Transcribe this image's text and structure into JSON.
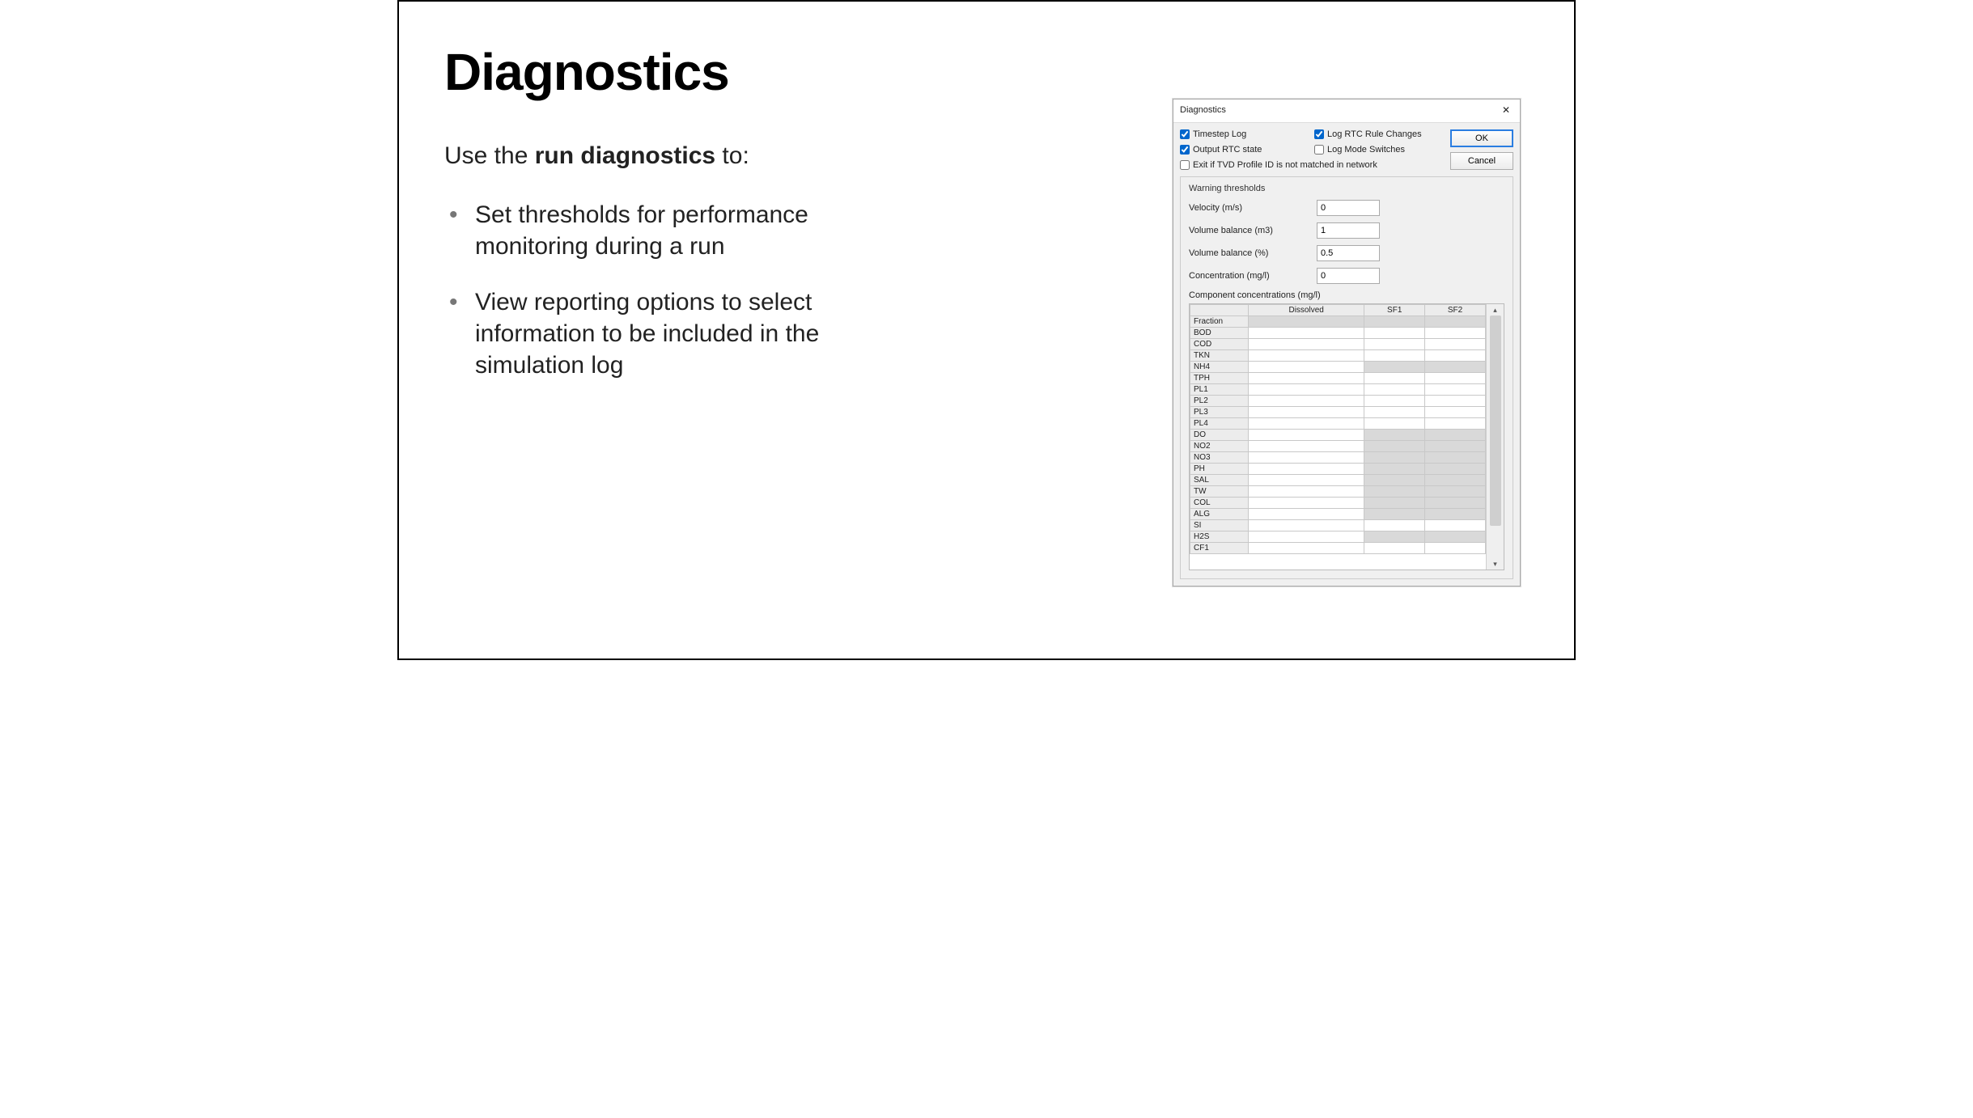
{
  "slide": {
    "title": "Diagnostics",
    "intro_prefix": "Use the ",
    "intro_bold": "run diagnostics",
    "intro_suffix": " to:",
    "bullets": [
      "Set thresholds for performance monitoring during a run",
      "View reporting options to select information to be included in the simulation log"
    ]
  },
  "dialog": {
    "title": "Diagnostics",
    "buttons": {
      "ok": "OK",
      "cancel": "Cancel"
    },
    "checkboxes": {
      "timestep_log": {
        "label": "Timestep Log",
        "checked": true
      },
      "log_rtc_rule_changes": {
        "label": "Log RTC Rule Changes",
        "checked": true
      },
      "output_rtc_state": {
        "label": "Output RTC state",
        "checked": true
      },
      "log_mode_switches": {
        "label": "Log Mode Switches",
        "checked": false
      },
      "exit_tvd": {
        "label": "Exit if TVD Profile ID is not matched in network",
        "checked": false
      }
    },
    "warning_thresholds": {
      "group_label": "Warning thresholds",
      "velocity": {
        "label": "Velocity (m/s)",
        "value": "0"
      },
      "volume_balance_m3": {
        "label": "Volume balance (m3)",
        "value": "1"
      },
      "volume_balance_pct": {
        "label": "Volume balance (%)",
        "value": "0.5"
      },
      "concentration": {
        "label": "Concentration (mg/l)",
        "value": "0"
      },
      "component_label": "Component concentrations (mg/l)"
    },
    "table": {
      "columns": [
        "",
        "Dissolved",
        "SF1",
        "SF2"
      ],
      "rows": [
        {
          "name": "Fraction",
          "cells": [
            "shaded",
            "shaded",
            "shaded"
          ]
        },
        {
          "name": "BOD",
          "cells": [
            "blank",
            "blank",
            "blank"
          ]
        },
        {
          "name": "COD",
          "cells": [
            "blank",
            "blank",
            "blank"
          ]
        },
        {
          "name": "TKN",
          "cells": [
            "blank",
            "blank",
            "blank"
          ]
        },
        {
          "name": "NH4",
          "cells": [
            "blank",
            "shaded",
            "shaded"
          ]
        },
        {
          "name": "TPH",
          "cells": [
            "blank",
            "blank",
            "blank"
          ]
        },
        {
          "name": "PL1",
          "cells": [
            "blank",
            "blank",
            "blank"
          ]
        },
        {
          "name": "PL2",
          "cells": [
            "blank",
            "blank",
            "blank"
          ]
        },
        {
          "name": "PL3",
          "cells": [
            "blank",
            "blank",
            "blank"
          ]
        },
        {
          "name": "PL4",
          "cells": [
            "blank",
            "blank",
            "blank"
          ]
        },
        {
          "name": "DO",
          "cells": [
            "blank",
            "shaded",
            "shaded"
          ]
        },
        {
          "name": "NO2",
          "cells": [
            "blank",
            "shaded",
            "shaded"
          ]
        },
        {
          "name": "NO3",
          "cells": [
            "blank",
            "shaded",
            "shaded"
          ]
        },
        {
          "name": "PH",
          "cells": [
            "blank",
            "shaded",
            "shaded"
          ]
        },
        {
          "name": "SAL",
          "cells": [
            "blank",
            "shaded",
            "shaded"
          ]
        },
        {
          "name": "TW",
          "cells": [
            "blank",
            "shaded",
            "shaded"
          ]
        },
        {
          "name": "COL",
          "cells": [
            "blank",
            "shaded",
            "shaded"
          ]
        },
        {
          "name": "ALG",
          "cells": [
            "blank",
            "shaded",
            "shaded"
          ]
        },
        {
          "name": "SI",
          "cells": [
            "blank",
            "blank",
            "blank"
          ]
        },
        {
          "name": "H2S",
          "cells": [
            "blank",
            "shaded",
            "shaded"
          ]
        },
        {
          "name": "CF1",
          "cells": [
            "blank",
            "blank",
            "blank"
          ]
        }
      ]
    }
  }
}
